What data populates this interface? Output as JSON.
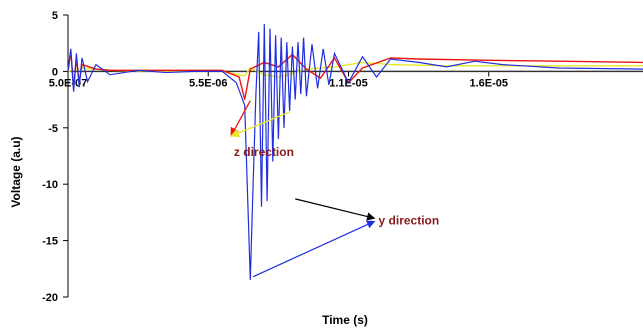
{
  "chart_data": {
    "type": "line",
    "title": "",
    "xlabel": "Time (s)",
    "ylabel": "Voltage (a.u)",
    "xlim": [
      5e-07,
      2.1e-05
    ],
    "ylim": [
      -20,
      5
    ],
    "x_tick_labels": [
      "5.0E-07",
      "5.5E-06",
      "1.1E-05",
      "1.6E-05"
    ],
    "x_ticks": [
      5e-07,
      5.5e-06,
      1.05e-05,
      1.55e-05
    ],
    "y_ticks": [
      5,
      0,
      -5,
      -10,
      -15,
      -20
    ],
    "grid": false,
    "legend": "none",
    "series": [
      {
        "color": "#1f2fe0",
        "x": [
          5e-07,
          6e-07,
          7e-07,
          8e-07,
          9e-07,
          1e-06,
          1.2e-06,
          1.5e-06,
          2e-06,
          3e-06,
          4e-06,
          5e-06,
          6e-06,
          6.5e-06,
          6.8e-06,
          7e-06,
          7.1e-06,
          7.2e-06,
          7.3e-06,
          7.4e-06,
          7.5e-06,
          7.6e-06,
          7.7e-06,
          7.8e-06,
          7.9e-06,
          8e-06,
          8.1e-06,
          8.2e-06,
          8.3e-06,
          8.4e-06,
          8.5e-06,
          8.6e-06,
          8.7e-06,
          8.8e-06,
          8.9e-06,
          9e-06,
          9.2e-06,
          9.4e-06,
          9.6e-06,
          9.8e-06,
          1e-05,
          1.05e-05,
          1.1e-05,
          1.15e-05,
          1.2e-05,
          1.3e-05,
          1.4e-05,
          1.5e-05,
          1.6e-05,
          1.8e-05,
          2.1e-05
        ],
        "values": [
          0,
          2.0,
          -1.8,
          1.6,
          -1.4,
          1.2,
          -0.9,
          0.6,
          -0.3,
          0.1,
          -0.1,
          0,
          0,
          -1.0,
          -3.0,
          -18.5,
          -10,
          -2,
          3.5,
          -12,
          4.2,
          -11.5,
          3.8,
          -8,
          3.2,
          -6,
          3.0,
          -5,
          2.6,
          -3.5,
          2.2,
          -2.5,
          2.6,
          -2,
          3.0,
          -2.2,
          2.4,
          -1.5,
          2.0,
          -1.2,
          1.6,
          -1.0,
          1.3,
          -0.5,
          1.1,
          0.8,
          0.4,
          0.9,
          0.6,
          0.3,
          0.2
        ]
      },
      {
        "color": "#ee1111",
        "x": [
          5e-07,
          6e-07,
          7e-07,
          8e-07,
          9e-07,
          1e-06,
          1.5e-06,
          2e-06,
          3e-06,
          5e-06,
          6e-06,
          6.6e-06,
          6.8e-06,
          7e-06,
          7.5e-06,
          8e-06,
          8.5e-06,
          9e-06,
          9.5e-06,
          1e-05,
          1.05e-05,
          1.1e-05,
          1.2e-05,
          1.3e-05,
          1.5e-05,
          1.8e-05,
          2.1e-05
        ],
        "values": [
          0,
          1.8,
          -1.5,
          1.2,
          -1.0,
          0.6,
          0.2,
          0.1,
          0.1,
          0.1,
          0.1,
          -0.5,
          -2.5,
          0.2,
          0.8,
          0.4,
          1.5,
          0.2,
          -0.6,
          1.2,
          -1.0,
          0.3,
          1.2,
          1.1,
          1.0,
          0.9,
          0.8
        ]
      },
      {
        "color": "#e8e820",
        "x": [
          5e-07,
          1e-06,
          2e-06,
          4e-06,
          6e-06,
          6.8e-06,
          7e-06,
          7.5e-06,
          8e-06,
          8.5e-06,
          9e-06,
          1e-05,
          1.1e-05,
          1.2e-05,
          1.4e-05,
          1.6e-05,
          1.8e-05,
          2.1e-05
        ],
        "values": [
          0,
          0.3,
          0.1,
          0,
          0,
          -0.4,
          0.3,
          -0.3,
          -0.5,
          -0.2,
          0.2,
          0.4,
          0.8,
          0.6,
          0.5,
          0.5,
          0.5,
          0.5
        ]
      },
      {
        "color": "#333333",
        "x": [
          5e-07,
          2.1e-05
        ],
        "values": [
          0,
          0
        ]
      }
    ],
    "annotations": [
      {
        "text": "z direction",
        "x": 7.2e-06,
        "y": -6.8
      },
      {
        "text": "y direction",
        "x": 1.15e-05,
        "y": -13.2
      }
    ]
  }
}
